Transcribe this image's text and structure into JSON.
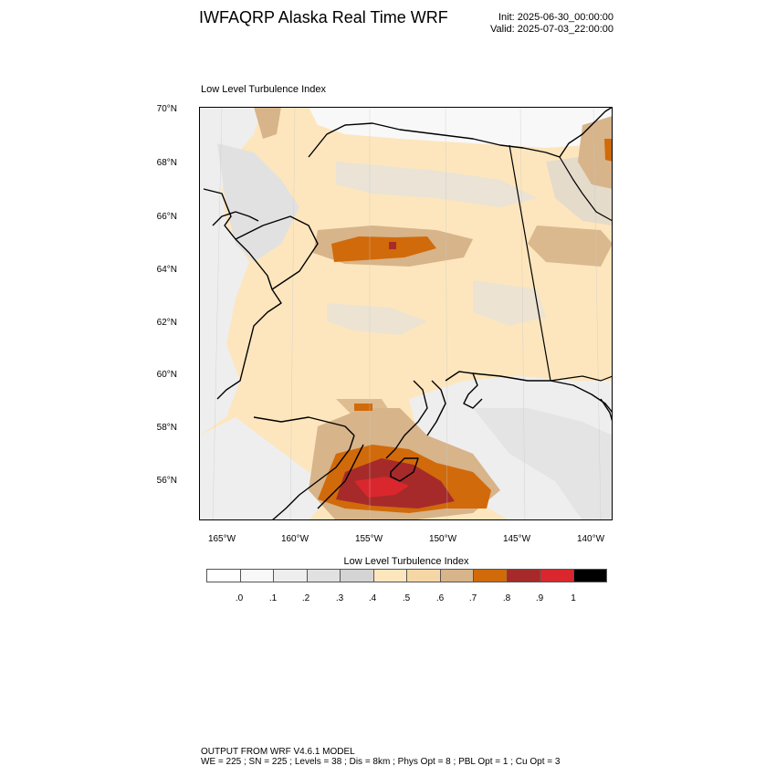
{
  "header": {
    "title": "IWFAQRP Alaska Real Time WRF",
    "init": "Init: 2025-06-30_00:00:00",
    "valid": "Valid: 2025-07-03_22:00:00"
  },
  "map": {
    "title": "Low Level Turbulence Index",
    "lat_labels": [
      "70°N",
      "68°N",
      "66°N",
      "64°N",
      "62°N",
      "60°N",
      "58°N",
      "56°N"
    ],
    "lon_labels": [
      "165°W",
      "160°W",
      "155°W",
      "150°W",
      "145°W",
      "140°W"
    ],
    "background_color": "#f4f4f4",
    "coast_color": "#000000"
  },
  "colorbar": {
    "title": "Low Level Turbulence Index",
    "labels": [
      ".0",
      ".1",
      ".2",
      ".3",
      ".4",
      ".5",
      ".6",
      ".7",
      ".8",
      ".9",
      "1"
    ],
    "colors": [
      "#ffffff",
      "#f8f8f8",
      "#eeeeee",
      "#e1e1e1",
      "#d4d4d4",
      "#fde6bd",
      "#f5d7a5",
      "#d7b48a",
      "#d16a0a",
      "#a72a2a",
      "#d9272d",
      "#000000"
    ]
  },
  "footer": {
    "line1": "OUTPUT FROM WRF V4.6.1 MODEL",
    "line2": "WE = 225 ; SN = 225 ; Levels = 38 ; Dis = 8km ; Phys Opt = 8 ; PBL Opt = 1 ; Cu Opt = 3"
  }
}
